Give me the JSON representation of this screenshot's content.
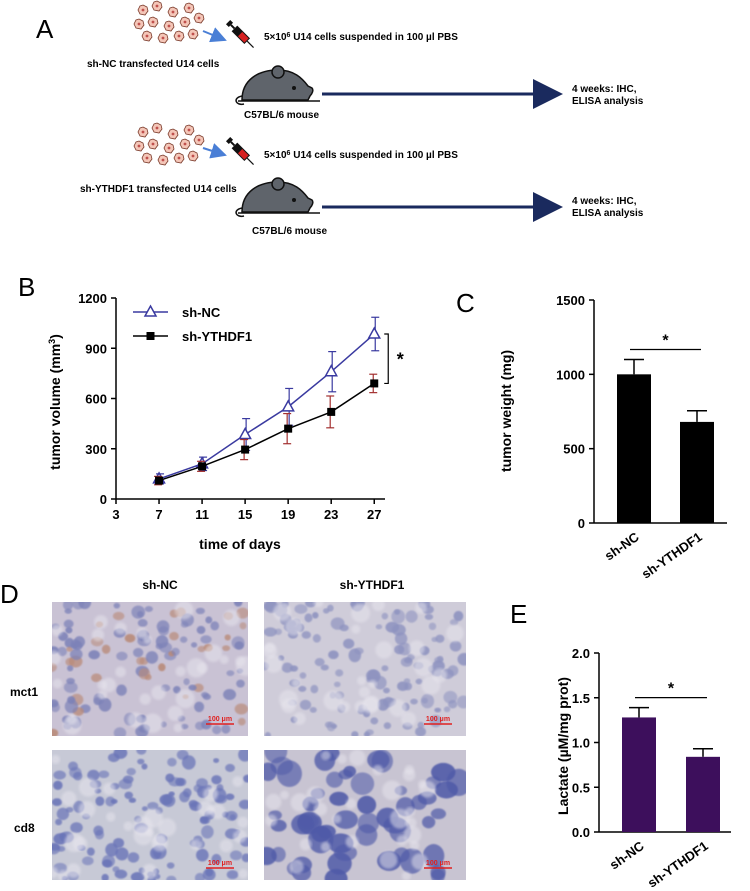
{
  "panel_letters": {
    "a": "A",
    "b": "B",
    "c": "C",
    "d": "D",
    "e": "E"
  },
  "schematic": {
    "rows": [
      {
        "group_label": "sh-NC transfected U14 cells",
        "injection_text_prefix": "5×10",
        "injection_text_exp": "6",
        "injection_text_suffix": " U14 cells suspended in 100 µl PBS",
        "mouse_label": "C57BL/6 mouse",
        "outcome_line1": "4 weeks: IHC,",
        "outcome_line2": "ELISA analysis"
      },
      {
        "group_label": "sh-YTHDF1 transfected U14 cells",
        "injection_text_prefix": "5×10",
        "injection_text_exp": "6",
        "injection_text_suffix": " U14 cells suspended in 100 µl PBS",
        "mouse_label": "C57BL/6 mouse",
        "outcome_line1": "4 weeks: IHC,",
        "outcome_line2": "ELISA analysis"
      }
    ],
    "colors": {
      "arrow": "#1a2a5e",
      "small_arrow": "#4a7fd6",
      "cell": "#f4c6b8",
      "mouse": "#5f646b",
      "syringe_tip": "#d62020"
    }
  },
  "chart_data": [
    {
      "panel": "B",
      "type": "line",
      "x": [
        7,
        11,
        15,
        19,
        23,
        27
      ],
      "series": [
        {
          "name": "sh-NC",
          "values": [
            120,
            210,
            385,
            550,
            760,
            985
          ],
          "errors": [
            30,
            40,
            95,
            110,
            120,
            100
          ],
          "color": "#3a3aa0",
          "marker": "open-triangle"
        },
        {
          "name": "sh-YTHDF1",
          "values": [
            110,
            195,
            295,
            420,
            520,
            690
          ],
          "errors": [
            25,
            30,
            60,
            90,
            95,
            55
          ],
          "color": "#000000",
          "err_color": "#a33030",
          "marker": "filled-square"
        }
      ],
      "xlabel": "time of days",
      "ylabel_text": "tumor volume (mm",
      "ylabel_sup": "3",
      "ylabel_close": ")",
      "xticks": [
        3,
        7,
        11,
        15,
        19,
        23,
        27
      ],
      "yticks": [
        0,
        300,
        600,
        900,
        1200
      ],
      "xlim": [
        3,
        28
      ],
      "ylim": [
        0,
        1200
      ],
      "significance": "*",
      "legend_position": "top-left"
    },
    {
      "panel": "C",
      "type": "bar",
      "categories": [
        "sh-NC",
        "sh-YTHDF1"
      ],
      "values": [
        1000,
        680
      ],
      "errors": [
        100,
        75
      ],
      "color": "#000000",
      "ylabel": "tumor weight (mg)",
      "yticks": [
        0,
        500,
        1000,
        1500
      ],
      "ylim": [
        0,
        1500
      ],
      "significance": "*"
    },
    {
      "panel": "E",
      "type": "bar",
      "categories": [
        "sh-NC",
        "sh-YTHDF1"
      ],
      "values": [
        1.28,
        0.84
      ],
      "errors": [
        0.11,
        0.09
      ],
      "color": "#3d0f5c",
      "ylabel": "Lactate (µM/mg prot)",
      "yticks": [
        "0.0",
        "0.5",
        "1.0",
        "1.5",
        "2.0"
      ],
      "ylim": [
        0,
        2.0
      ],
      "significance": "*"
    }
  ],
  "ihc": {
    "col_headers": [
      "sh-NC",
      "sh-YTHDF1"
    ],
    "row_labels": [
      "mct1",
      "cd8"
    ],
    "scale_bar": "100 μm",
    "scale_color": "#e02020"
  }
}
